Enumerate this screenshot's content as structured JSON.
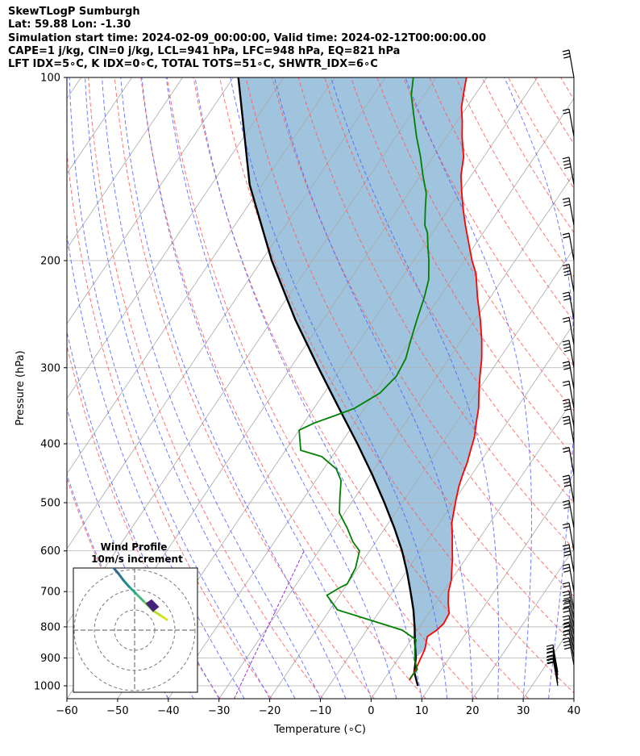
{
  "header": {
    "line1": "SkewTLogP Sumburgh",
    "line2": "Lat: 59.88   Lon: -1.30",
    "line3": "Simulation start time: 2024-02-09_00:00:00, Valid time: 2024-02-12T00:00:00.00",
    "line4": "CAPE=1 j/kg, CIN=0 j/kg, LCL=941 hPa, LFC=948 hPa, EQ=821 hPa",
    "line5": "LFT IDX=5∘C, K IDX=0∘C, TOTAL TOTS=51∘C, SHWTR_IDX=6∘C"
  },
  "chart_data": {
    "type": "skew-t",
    "xlabel": "Temperature (∘C)",
    "ylabel": "Pressure (hPa)",
    "xlim": [
      -60,
      40
    ],
    "ylim": [
      1050,
      100
    ],
    "x_ticks": [
      -60,
      -50,
      -40,
      -30,
      -20,
      -10,
      0,
      10,
      20,
      30,
      40
    ],
    "x_tick_labels": [
      "−60",
      "−50",
      "−40",
      "−30",
      "−20",
      "−10",
      "0",
      "10",
      "20",
      "30",
      "40"
    ],
    "y_ticks": [
      1000,
      900,
      800,
      700,
      600,
      500,
      400,
      300,
      200,
      100
    ],
    "y_tick_labels": [
      "1000",
      "900",
      "800",
      "700",
      "600",
      "500",
      "400",
      "300",
      "200",
      "100"
    ],
    "grid": true,
    "series": [
      {
        "role": "temperature",
        "color": "#ff0000",
        "points": [
          [
            5.1,
            980
          ],
          [
            5.0,
            950
          ],
          [
            4.0,
            870
          ],
          [
            2.8,
            830
          ],
          [
            3.8,
            810
          ],
          [
            4.3,
            790
          ],
          [
            4.0,
            760
          ],
          [
            2.4,
            730
          ],
          [
            1.0,
            700
          ],
          [
            0.0,
            670
          ],
          [
            -1.5,
            640
          ],
          [
            -2.5,
            620
          ],
          [
            -3.7,
            600
          ],
          [
            -5.5,
            570
          ],
          [
            -7.5,
            540
          ],
          [
            -9.0,
            510
          ],
          [
            -10.0,
            490
          ],
          [
            -11.0,
            470
          ],
          [
            -11.8,
            450
          ],
          [
            -12.5,
            430
          ],
          [
            -13.5,
            410
          ],
          [
            -14.5,
            390
          ],
          [
            -16.0,
            370
          ],
          [
            -17.5,
            350
          ],
          [
            -19.5,
            330
          ],
          [
            -21.5,
            310
          ],
          [
            -23.5,
            290
          ],
          [
            -26.0,
            270
          ],
          [
            -29.0,
            250
          ],
          [
            -32.5,
            230
          ],
          [
            -36.0,
            210
          ],
          [
            -38.5,
            200
          ],
          [
            -42.0,
            185
          ],
          [
            -44.5,
            175
          ],
          [
            -47.0,
            165
          ],
          [
            -49.5,
            155
          ],
          [
            -52.0,
            145
          ],
          [
            -54.0,
            135
          ],
          [
            -55.5,
            130
          ],
          [
            -57.0,
            125
          ],
          [
            -59.0,
            118
          ],
          [
            -61.0,
            112
          ],
          [
            -62.5,
            106
          ],
          [
            -63.5,
            102
          ],
          [
            -64.0,
            100
          ]
        ]
      },
      {
        "role": "dewpoint",
        "color": "#008000",
        "points": [
          [
            5.0,
            975
          ],
          [
            5.0,
            960
          ],
          [
            5.2,
            940
          ],
          [
            3.6,
            910
          ],
          [
            2.0,
            870
          ],
          [
            1.0,
            840
          ],
          [
            -3.0,
            810
          ],
          [
            -18.5,
            750
          ],
          [
            -22.5,
            710
          ],
          [
            -21.0,
            690
          ],
          [
            -20.0,
            680
          ],
          [
            -20.5,
            640
          ],
          [
            -22.0,
            600
          ],
          [
            -24.5,
            580
          ],
          [
            -27.5,
            550
          ],
          [
            -31.0,
            520
          ],
          [
            -33.0,
            490
          ],
          [
            -35.0,
            460
          ],
          [
            -37.5,
            440
          ],
          [
            -42.0,
            420
          ],
          [
            -47.0,
            410
          ],
          [
            -50.0,
            380
          ],
          [
            -48.0,
            370
          ],
          [
            -45.0,
            360
          ],
          [
            -42.0,
            350
          ],
          [
            -39.0,
            330
          ],
          [
            -38.0,
            310
          ],
          [
            -38.5,
            290
          ],
          [
            -40.0,
            270
          ],
          [
            -41.5,
            250
          ],
          [
            -43.0,
            230
          ],
          [
            -44.5,
            215
          ],
          [
            -47.0,
            200
          ],
          [
            -49.0,
            190
          ],
          [
            -51.0,
            180
          ],
          [
            -52.5,
            175
          ],
          [
            -54.5,
            165
          ],
          [
            -56.5,
            155
          ],
          [
            -59.5,
            145
          ],
          [
            -62.5,
            135
          ],
          [
            -66.0,
            125
          ],
          [
            -69.5,
            115
          ],
          [
            -72.5,
            107
          ],
          [
            -74.5,
            100
          ]
        ]
      },
      {
        "role": "parcel",
        "color": "#000000",
        "points": [
          [
            7.5,
            1000
          ],
          [
            5.0,
            950
          ],
          [
            3.4,
            900
          ],
          [
            1.2,
            850
          ],
          [
            -1.0,
            800
          ],
          [
            -3.5,
            750
          ],
          [
            -6.5,
            700
          ],
          [
            -9.8,
            650
          ],
          [
            -13.6,
            600
          ],
          [
            -18.2,
            550
          ],
          [
            -23.5,
            500
          ],
          [
            -29.6,
            450
          ],
          [
            -36.7,
            400
          ],
          [
            -45.0,
            350
          ],
          [
            -54.5,
            300
          ],
          [
            -65.5,
            250
          ],
          [
            -78.0,
            200
          ],
          [
            -92.5,
            150
          ],
          [
            -109.0,
            100
          ]
        ]
      }
    ],
    "shaded_area": "between temperature and parcel",
    "shade_color": "#a0c4de",
    "wind_barb_pressures": [
      1000,
      990,
      975,
      960,
      950,
      925,
      900,
      875,
      850,
      825,
      800,
      775,
      750,
      700,
      650,
      600,
      550,
      500,
      450,
      400,
      375,
      350,
      325,
      300,
      275,
      250,
      225,
      200,
      175,
      150,
      125,
      100
    ],
    "hodograph": {
      "title": "Wind Profile",
      "subtitle": "10m/s increment"
    }
  }
}
